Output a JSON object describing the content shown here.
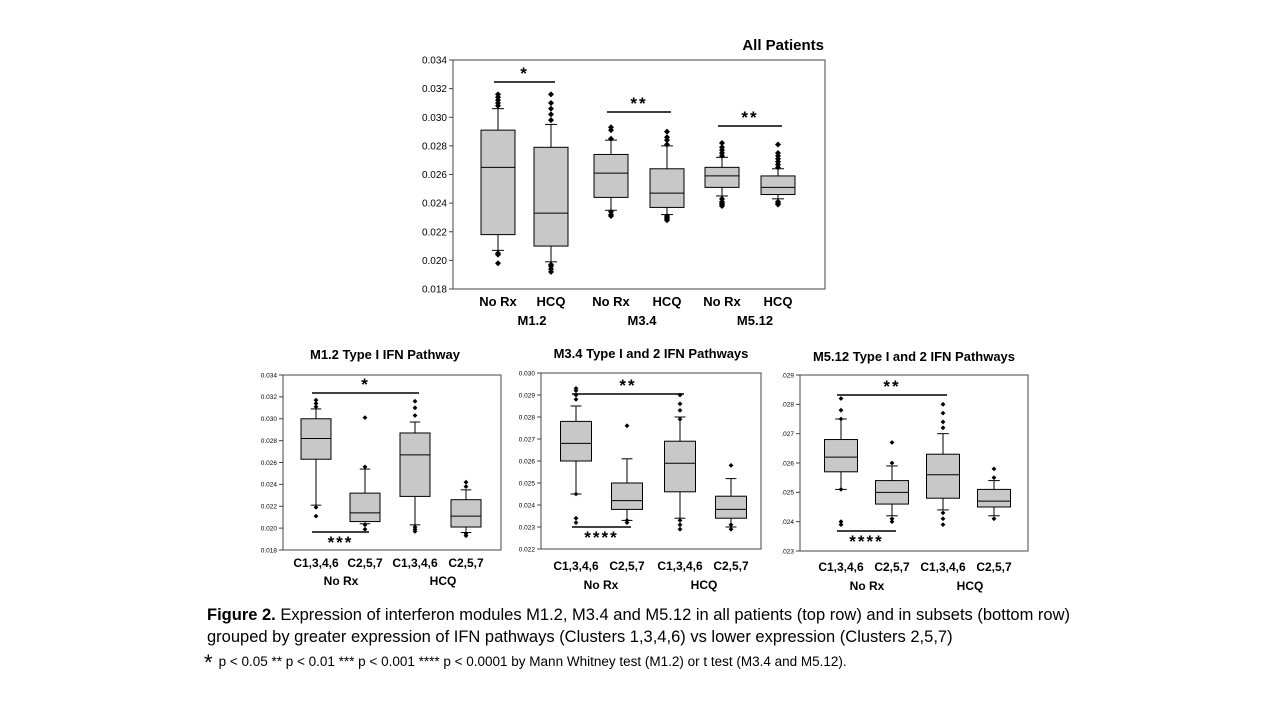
{
  "chart_data": [
    {
      "type": "box",
      "title": "All Patients",
      "ylim": [
        0.018,
        0.034
      ],
      "yticks": [
        "0.018",
        "0.020",
        "0.022",
        "0.024",
        "0.026",
        "0.028",
        "0.030",
        "0.032",
        "0.034"
      ],
      "groups": [
        "M1.2",
        "M3.4",
        "M5.12"
      ],
      "categories": [
        "No Rx",
        "HCQ",
        "No Rx",
        "HCQ",
        "No Rx",
        "HCQ"
      ],
      "boxes": [
        {
          "category": "No Rx",
          "group": "M1.2",
          "q1": 0.0218,
          "median": 0.0265,
          "q3": 0.0291,
          "whisker_low": 0.0207,
          "whisker_high": 0.0306,
          "outliers": [
            0.0198,
            0.0204,
            0.0205,
            0.0308,
            0.031,
            0.0312,
            0.0314,
            0.0316
          ]
        },
        {
          "category": "HCQ",
          "group": "M1.2",
          "q1": 0.021,
          "median": 0.0233,
          "q3": 0.0279,
          "whisker_low": 0.0199,
          "whisker_high": 0.0295,
          "outliers": [
            0.0192,
            0.0194,
            0.0196,
            0.0197,
            0.0298,
            0.0302,
            0.0306,
            0.031,
            0.0316
          ]
        },
        {
          "category": "No Rx",
          "group": "M3.4",
          "q1": 0.0244,
          "median": 0.0261,
          "q3": 0.0274,
          "whisker_low": 0.0235,
          "whisker_high": 0.0284,
          "outliers": [
            0.0231,
            0.0232,
            0.0234,
            0.0285,
            0.0291,
            0.0293
          ]
        },
        {
          "category": "HCQ",
          "group": "M3.4",
          "q1": 0.0237,
          "median": 0.0247,
          "q3": 0.0264,
          "whisker_low": 0.0232,
          "whisker_high": 0.028,
          "outliers": [
            0.0228,
            0.0229,
            0.023,
            0.0231,
            0.0281,
            0.0284,
            0.0286,
            0.029
          ]
        },
        {
          "category": "No Rx",
          "group": "M5.12",
          "q1": 0.0251,
          "median": 0.0259,
          "q3": 0.0265,
          "whisker_low": 0.0245,
          "whisker_high": 0.0272,
          "outliers": [
            0.0238,
            0.0239,
            0.024,
            0.0241,
            0.0243,
            0.0273,
            0.0275,
            0.0277,
            0.0279,
            0.0282
          ]
        },
        {
          "category": "HCQ",
          "group": "M5.12",
          "q1": 0.0246,
          "median": 0.0251,
          "q3": 0.0259,
          "whisker_low": 0.0243,
          "whisker_high": 0.0264,
          "outliers": [
            0.0239,
            0.024,
            0.0241,
            0.0265,
            0.0267,
            0.0269,
            0.0271,
            0.0273,
            0.0275,
            0.0281
          ]
        }
      ],
      "significance": [
        {
          "label": "*",
          "from": 0,
          "to": 1
        },
        {
          "label": "**",
          "from": 2,
          "to": 3
        },
        {
          "label": "**",
          "from": 4,
          "to": 5
        }
      ]
    },
    {
      "type": "box",
      "title": "M1.2 Type I IFN Pathway",
      "ylim": [
        0.018,
        0.034
      ],
      "yticks": [
        "0.018",
        "0.020",
        "0.022",
        "0.024",
        "0.026",
        "0.028",
        "0.030",
        "0.032",
        "0.034"
      ],
      "categories": [
        "C1,3,4,6",
        "C2,5,7",
        "C1,3,4,6",
        "C2,5,7"
      ],
      "groups": [
        "No Rx",
        "HCQ"
      ],
      "boxes": [
        {
          "category": "C1,3,4,6",
          "q1": 0.0263,
          "median": 0.0282,
          "q3": 0.03,
          "whisker_low": 0.0221,
          "whisker_high": 0.0309,
          "outliers": [
            0.0211,
            0.0219,
            0.0311,
            0.0314,
            0.0317
          ]
        },
        {
          "category": "C2,5,7",
          "q1": 0.0206,
          "median": 0.0214,
          "q3": 0.0232,
          "whisker_low": 0.0204,
          "whisker_high": 0.0254,
          "outliers": [
            0.0199,
            0.0203,
            0.0256,
            0.0301
          ]
        },
        {
          "category": "C1,3,4,6",
          "q1": 0.0229,
          "median": 0.0267,
          "q3": 0.0287,
          "whisker_low": 0.0203,
          "whisker_high": 0.0297,
          "outliers": [
            0.0197,
            0.0199,
            0.0201,
            0.0303,
            0.031,
            0.0316
          ]
        },
        {
          "category": "C2,5,7",
          "q1": 0.0201,
          "median": 0.0211,
          "q3": 0.0226,
          "whisker_low": 0.0196,
          "whisker_high": 0.0235,
          "outliers": [
            0.0193,
            0.0195,
            0.0238,
            0.0242
          ]
        }
      ],
      "significance": [
        {
          "label": "*",
          "from": 0,
          "to": 2,
          "position": "above"
        },
        {
          "label": "***",
          "from": 0,
          "to": 1,
          "position": "below"
        }
      ]
    },
    {
      "type": "box",
      "title": "M3.4 Type I and 2 IFN Pathways",
      "ylim": [
        0.022,
        0.03
      ],
      "yticks": [
        "0.022",
        "0.023",
        "0.024",
        "0.025",
        "0.026",
        "0.027",
        "0.028",
        "0.029",
        "0.030"
      ],
      "categories": [
        "C1,3,4,6",
        "C2,5,7",
        "C1,3,4,6",
        "C2,5,7"
      ],
      "groups": [
        "No Rx",
        "HCQ"
      ],
      "boxes": [
        {
          "category": "C1,3,4,6",
          "q1": 0.026,
          "median": 0.0268,
          "q3": 0.0278,
          "whisker_low": 0.0245,
          "whisker_high": 0.0285,
          "outliers": [
            0.0232,
            0.0234,
            0.0245,
            0.0288,
            0.029,
            0.0292,
            0.0293
          ]
        },
        {
          "category": "C2,5,7",
          "q1": 0.0238,
          "median": 0.0242,
          "q3": 0.025,
          "whisker_low": 0.0233,
          "whisker_high": 0.0261,
          "outliers": [
            0.0232,
            0.0233,
            0.0276
          ]
        },
        {
          "category": "C1,3,4,6",
          "q1": 0.0246,
          "median": 0.0259,
          "q3": 0.0269,
          "whisker_low": 0.0234,
          "whisker_high": 0.028,
          "outliers": [
            0.0229,
            0.0231,
            0.0233,
            0.0279,
            0.0283,
            0.0286,
            0.029
          ]
        },
        {
          "category": "C2,5,7",
          "q1": 0.0234,
          "median": 0.0238,
          "q3": 0.0244,
          "whisker_low": 0.023,
          "whisker_high": 0.0252,
          "outliers": [
            0.0229,
            0.0231,
            0.0258
          ]
        }
      ],
      "significance": [
        {
          "label": "**",
          "from": 0,
          "to": 2,
          "position": "above"
        },
        {
          "label": "****",
          "from": 0,
          "to": 1,
          "position": "below"
        }
      ]
    },
    {
      "type": "box",
      "title": "M5.12 Type I and 2 IFN Pathways",
      "ylim": [
        0.023,
        0.029
      ],
      "yticks": [
        ".023",
        ".024",
        ".025",
        ".026",
        ".027",
        ".028",
        ".029"
      ],
      "categories": [
        "C1,3,4,6",
        "C2,5,7",
        "C1,3,4,6",
        "C2,5,7"
      ],
      "groups": [
        "No Rx",
        "HCQ"
      ],
      "boxes": [
        {
          "category": "C1,3,4,6",
          "q1": 0.0257,
          "median": 0.0262,
          "q3": 0.0268,
          "whisker_low": 0.0251,
          "whisker_high": 0.0275,
          "outliers": [
            0.0239,
            0.024,
            0.0251,
            0.0275,
            0.0278,
            0.0282
          ]
        },
        {
          "category": "C2,5,7",
          "q1": 0.0246,
          "median": 0.025,
          "q3": 0.0254,
          "whisker_low": 0.0242,
          "whisker_high": 0.0259,
          "outliers": [
            0.024,
            0.0241,
            0.026,
            0.0267
          ]
        },
        {
          "category": "C1,3,4,6",
          "q1": 0.0248,
          "median": 0.0256,
          "q3": 0.0263,
          "whisker_low": 0.0244,
          "whisker_high": 0.027,
          "outliers": [
            0.0239,
            0.0241,
            0.0243,
            0.0272,
            0.0274,
            0.0277,
            0.028
          ]
        },
        {
          "category": "C2,5,7",
          "q1": 0.0245,
          "median": 0.0247,
          "q3": 0.0251,
          "whisker_low": 0.0242,
          "whisker_high": 0.0254,
          "outliers": [
            0.0241,
            0.0255,
            0.0258
          ]
        }
      ],
      "significance": [
        {
          "label": "**",
          "from": 0,
          "to": 2,
          "position": "above"
        },
        {
          "label": "****",
          "from": 0,
          "to": 1,
          "position": "below"
        }
      ]
    }
  ],
  "caption": {
    "figure_label": "Figure 2.",
    "text": "Expression of interferon modules M1.2, M3.4 and M5.12 in all patients (top row) and in subsets (bottom row) grouped by greater expression of IFN pathways (Clusters 1,3,4,6) vs lower expression (Clusters 2,5,7)",
    "footnote_star": "*",
    "footnote": "p < 0.05  ** p < 0.01  *** p < 0.001  **** p < 0.0001  by Mann Whitney test (M1.2) or t test (M3.4 and M5.12)."
  },
  "colors": {
    "box_fill": "#c8c8c8",
    "stroke": "#000000"
  }
}
